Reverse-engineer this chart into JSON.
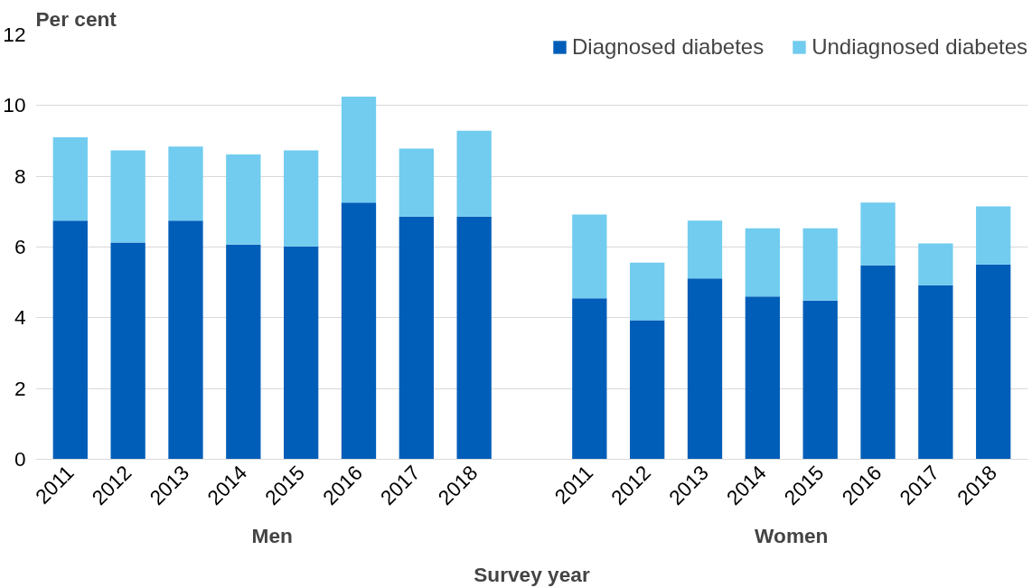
{
  "chart_data": {
    "type": "bar",
    "stacked": true,
    "ylabel": "Per cent",
    "xlabel": "Survey year",
    "categories": [
      "2011",
      "2012",
      "2013",
      "2014",
      "2015",
      "2016",
      "2017",
      "2018",
      null,
      "2011",
      "2012",
      "2013",
      "2014",
      "2015",
      "2016",
      "2017",
      "2018"
    ],
    "series": [
      {
        "name": "Diagnosed diabetes",
        "color": "#005eb8",
        "values": [
          6.75,
          6.13,
          6.75,
          6.07,
          6.02,
          7.26,
          6.86,
          6.86,
          null,
          4.55,
          3.93,
          5.11,
          4.6,
          4.49,
          5.48,
          4.92,
          5.51
        ]
      },
      {
        "name": "Undiagnosed diabetes",
        "color": "#71ccef",
        "values": [
          2.35,
          2.6,
          2.09,
          2.55,
          2.71,
          2.99,
          1.92,
          2.43,
          null,
          2.37,
          1.63,
          1.64,
          1.93,
          2.04,
          1.78,
          1.18,
          1.64
        ]
      }
    ],
    "annotations": [
      "Men",
      "Women"
    ],
    "ylim": [
      0,
      12
    ],
    "yticks": [
      0,
      2,
      4,
      6,
      8,
      10,
      12
    ],
    "grid": "y",
    "legend": "top right"
  }
}
